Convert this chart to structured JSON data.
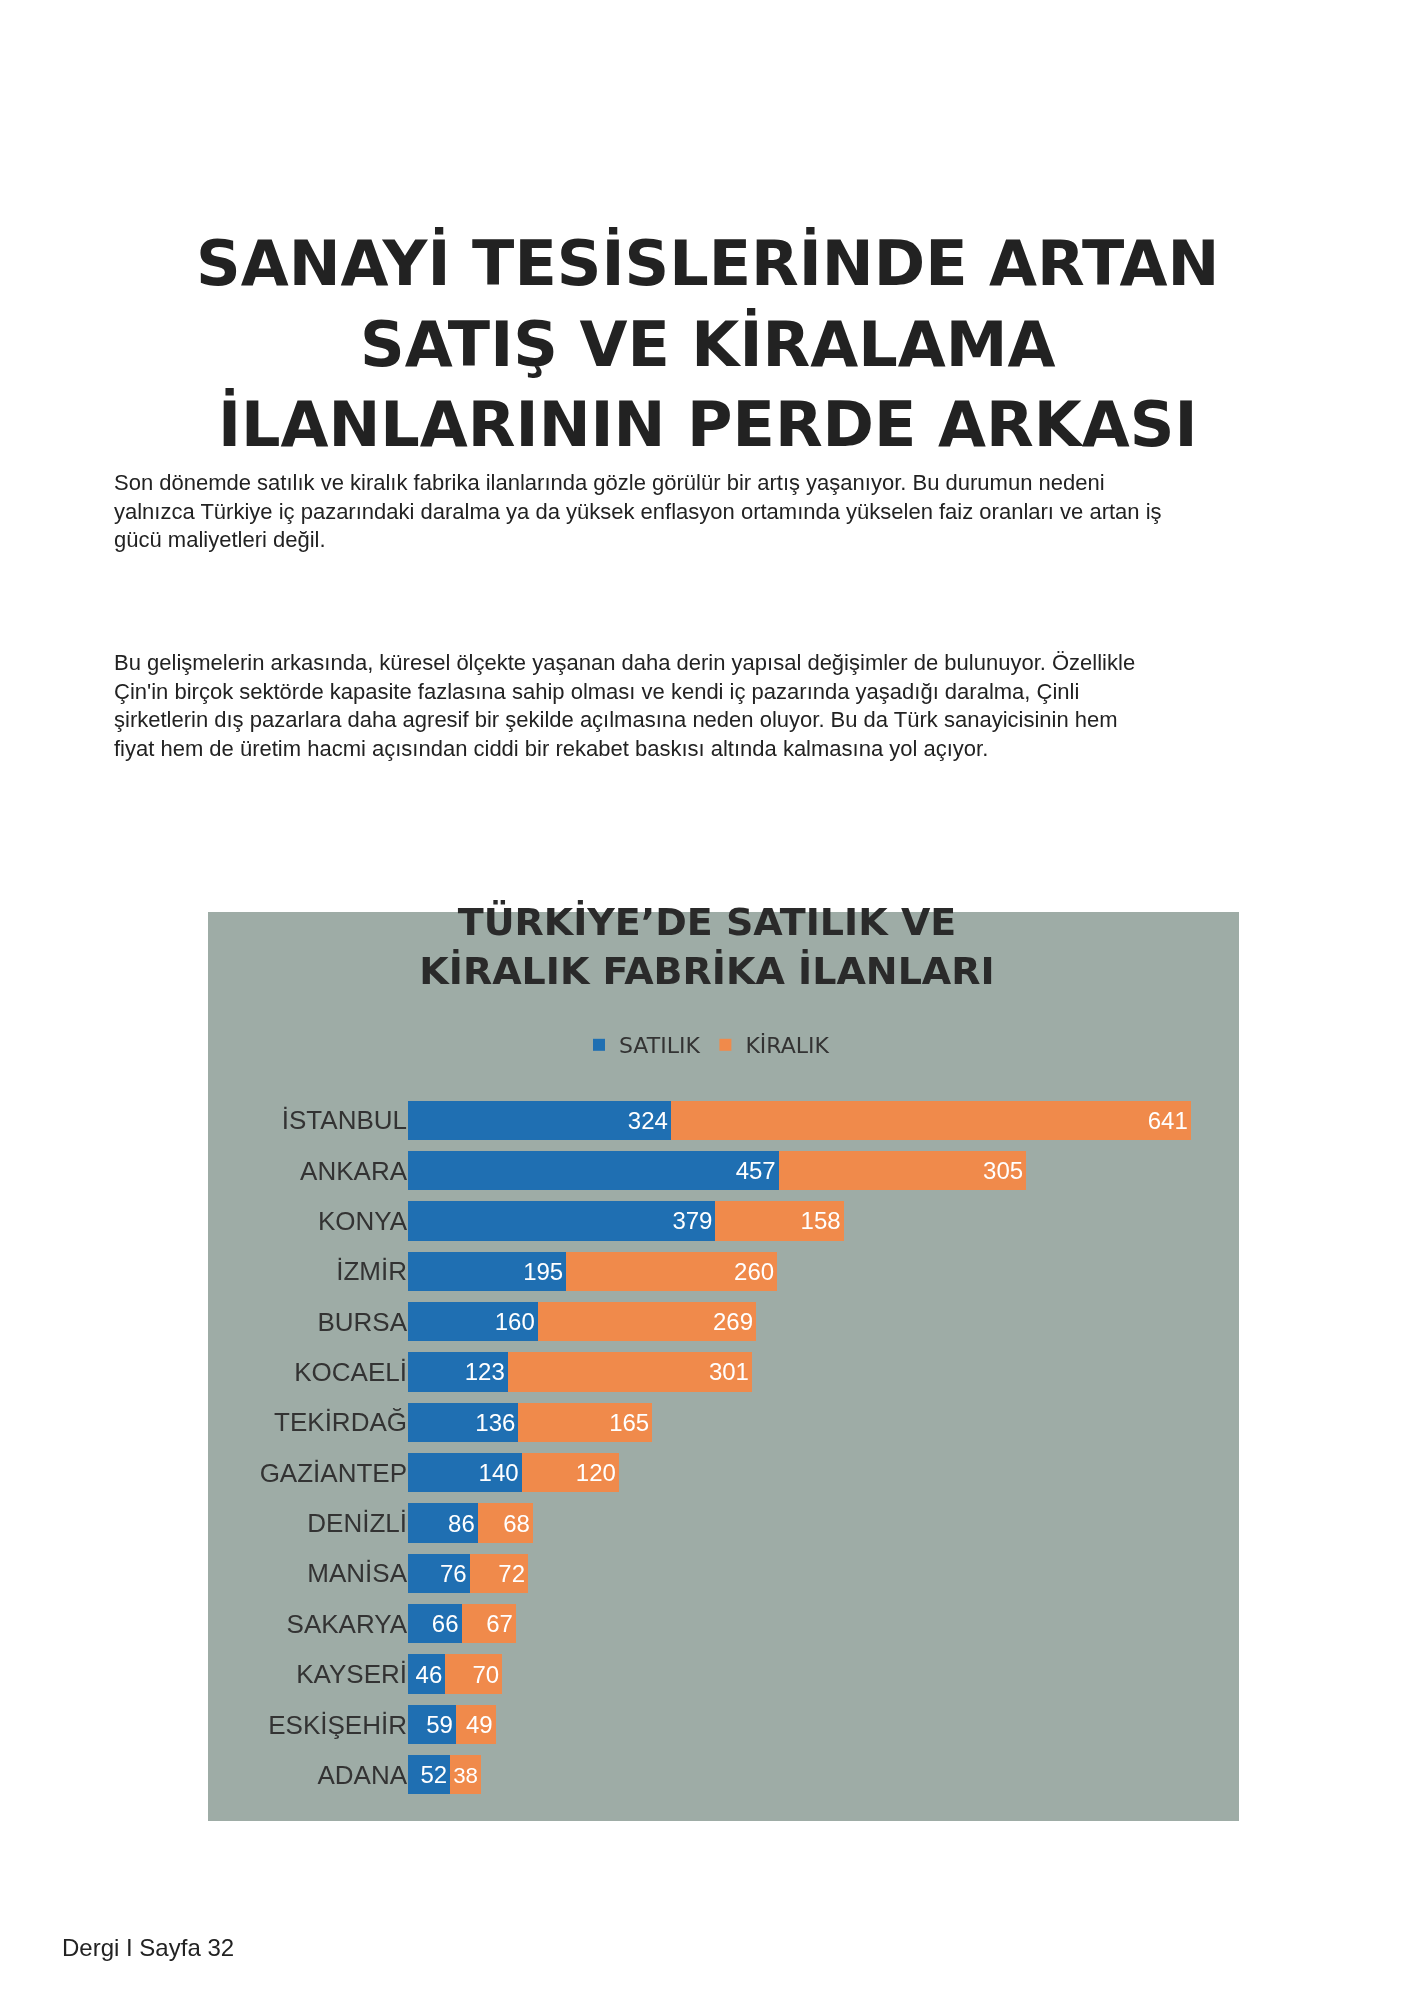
{
  "chart_data": {
    "type": "bar",
    "orientation": "horizontal",
    "stacked": true,
    "data_labels": true,
    "legend": "top",
    "title": "TÜRKİYE’DE SATILIK VE KİRALIK FABRİKA İLANLARI",
    "annotations": [
      "SANAYİ TESİSLERİNDE ARTAN SATIŞ VE KİRALAMA İLANLARININ PERDE ARKASI",
      "Son dönemde satılık ve kiralık fabrika ilanlarında gözle görülür bir artış yaşanıyor. Bu durumun nedeni yalnızca Türkiye iç pazarındaki daralma ya da yüksek enflasyon ortamında yükselen faiz oranları ve artan iş gücü maliyetleri değil.",
      "Bu gelişmelerin arkasında, küresel ölçekte yaşanan daha derin yapısal değişimler de bulunuyor. Özellikle Çin'in birçok sektörde kapasite fazlasına sahip olması ve kendi iç pazarında yaşadığı daralma, Çinli şirketlerin dış pazarlara daha agresif bir şekilde açılmasına neden oluyor. Bu da Türk sanayicisinin hem fiyat hem de üretim hacmi açısından ciddi bir rekabet baskısı altında kalmasına yol açıyor.",
      "Dergi I Sayfa 32"
    ],
    "categories": [
      "İSTANBUL",
      "ANKARA",
      "KONYA",
      "İZMİR",
      "BURSA",
      "KOCAELİ",
      "TEKİRDAĞ",
      "GAZİANTEP",
      "DENİZLİ",
      "MANİSA",
      "SAKARYA",
      "KAYSERİ",
      "ESKİŞEHİR",
      "ADANA"
    ],
    "series": [
      {
        "name": "SATILIK",
        "color": "#1f6fb2",
        "values": [
          324,
          457,
          379,
          195,
          160,
          123,
          136,
          140,
          86,
          76,
          66,
          46,
          59,
          52
        ]
      },
      {
        "name": "KİRALIK",
        "color": "#f08a4b",
        "values": [
          641,
          305,
          158,
          260,
          269,
          301,
          165,
          120,
          68,
          72,
          67,
          70,
          49,
          38
        ]
      }
    ]
  }
}
